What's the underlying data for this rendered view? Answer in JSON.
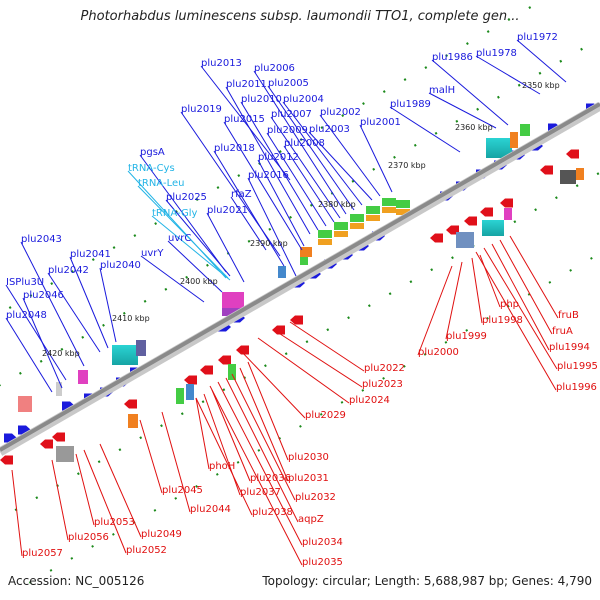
{
  "title": "Photorhabdus luminescens subsp. laumondii TTO1, complete gen...",
  "footer": {
    "accession": "Accession: NC_005126",
    "topology": "Topology: circular; Length: 5,688,987 bp; Genes: 4,790"
  },
  "colors": {
    "forward": "#1a1adc",
    "reverse": "#e0101a",
    "forward_label": "#1a1adc",
    "reverse_label": "#e01010",
    "trna_label": "#22b4e6",
    "tick": "#1c8a1c",
    "backbone": "#8a8a8a"
  },
  "tick_labels": [
    "2350 kbp",
    "2360 kbp",
    "2370 kbp",
    "2380 kbp",
    "2390 kbp",
    "2400 kbp",
    "2410 kbp",
    "2420 kbp"
  ],
  "forward_labels": [
    "plu1972",
    "plu1978",
    "plu1986",
    "malH",
    "plu1989",
    "plu2001",
    "plu2002",
    "plu2003",
    "plu2004",
    "plu2005",
    "plu2006",
    "plu2007",
    "plu2008",
    "plu2009",
    "plu2010",
    "plu2011",
    "plu2012",
    "plu2013",
    "plu2015",
    "plu2016",
    "plu2018",
    "plu2019",
    "rfaZ",
    "plu2021",
    "plu2025",
    "pgsA",
    "uvrC",
    "uvrY",
    "plu2040",
    "plu2041",
    "plu2042",
    "plu2043",
    "ISPlu3U",
    "plu2046",
    "plu2048"
  ],
  "trna_labels": [
    "tRNA-Cys",
    "tRNA-Leu",
    "tRNA-Gly"
  ],
  "reverse_labels": [
    "fruB",
    "fruA",
    "plu1994",
    "plu1995",
    "plu1996",
    "php",
    "plu1998",
    "plu1999",
    "plu2000",
    "plu2022",
    "plu2023",
    "plu2024",
    "plu2029",
    "plu2030",
    "plu2031",
    "plu2032",
    "aqpZ",
    "plu2034",
    "plu2035",
    "phoH",
    "plu2036",
    "plu2037",
    "plu2038",
    "plu2044",
    "plu2045",
    "plu2049",
    "plu2052",
    "plu2053",
    "plu2056",
    "plu2057"
  ]
}
